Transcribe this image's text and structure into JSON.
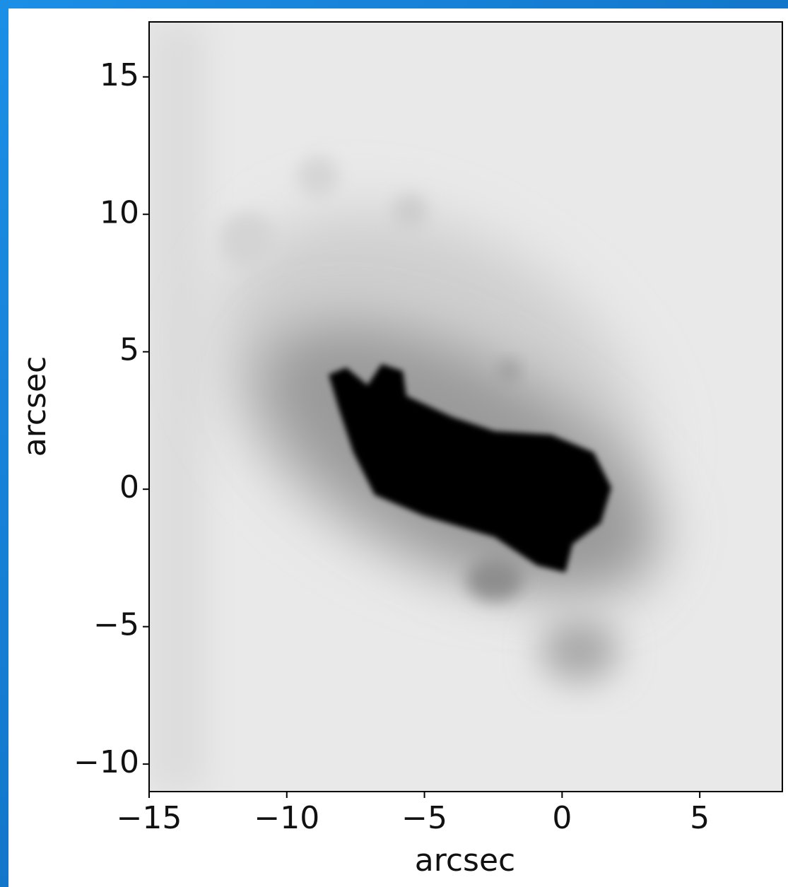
{
  "chart_data": {
    "type": "image",
    "xlabel": "arcsec",
    "ylabel": "arcsec",
    "xlim": [
      -15,
      8
    ],
    "ylim": [
      -11,
      17
    ],
    "xticks": [
      {
        "value": -15,
        "label": "−15"
      },
      {
        "value": -10,
        "label": "−10"
      },
      {
        "value": -5,
        "label": "−5"
      },
      0,
      5
    ],
    "yticks": [
      {
        "value": -10,
        "label": "−10"
      },
      {
        "value": -5,
        "label": "−5"
      },
      0,
      5,
      10,
      15
    ]
  }
}
